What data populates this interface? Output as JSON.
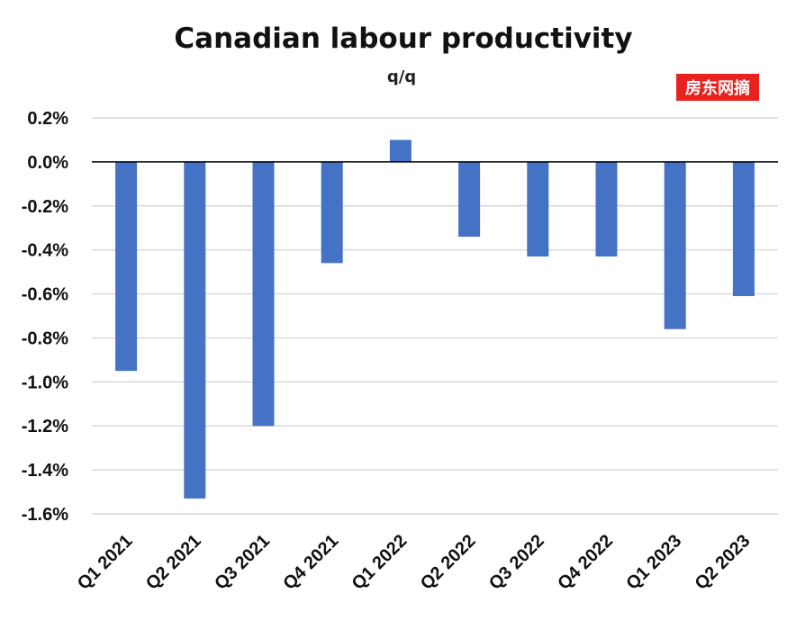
{
  "chart_data": {
    "type": "bar",
    "title": "Canadian labour productivity",
    "subtitle": "q/q",
    "categories": [
      "Q1 2021",
      "Q2 2021",
      "Q3 2021",
      "Q4 2021",
      "Q1 2022",
      "Q2 2022",
      "Q3 2022",
      "Q4 2022",
      "Q1 2023",
      "Q2 2023"
    ],
    "values": [
      -0.95,
      -1.53,
      -1.2,
      -0.46,
      0.1,
      -0.34,
      -0.43,
      -0.43,
      -0.76,
      -0.61
    ],
    "ylim": [
      -1.6,
      0.2
    ],
    "yticks": [
      0.2,
      0.0,
      -0.2,
      -0.4,
      -0.6,
      -0.8,
      -1.0,
      -1.2,
      -1.4,
      -1.6
    ],
    "ytick_labels": [
      "0.2%",
      "0.0%",
      "-0.2%",
      "-0.4%",
      "-0.6%",
      "-0.8%",
      "-1.0%",
      "-1.2%",
      "-1.4%",
      "-1.6%"
    ],
    "xlabel": "",
    "ylabel": "",
    "grid": true,
    "legend": "none",
    "bar_color": "#4472c4"
  },
  "watermark": {
    "text": "房东网摘",
    "color": "#e8231f"
  }
}
